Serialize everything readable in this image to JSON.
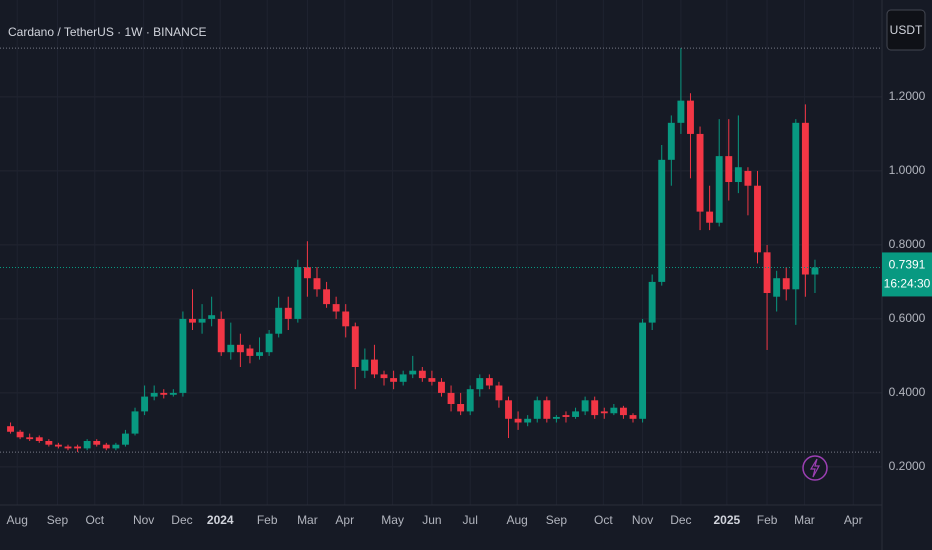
{
  "chart_data": {
    "type": "candlestick",
    "title": "Cardano / TetherUS · 1W · BINANCE",
    "currency_button": "USDT",
    "up_color": "#089981",
    "down_color": "#f23645",
    "grid": true,
    "open": [
      0.31,
      0.295,
      0.28,
      0.28,
      0.27,
      0.26,
      0.255,
      0.255,
      0.25,
      0.27,
      0.26,
      0.25,
      0.26,
      0.29,
      0.35,
      0.39,
      0.4,
      0.395,
      0.4,
      0.6,
      0.59,
      0.6,
      0.6,
      0.51,
      0.53,
      0.52,
      0.5,
      0.51,
      0.56,
      0.63,
      0.6,
      0.74,
      0.71,
      0.68,
      0.64,
      0.62,
      0.58,
      0.46,
      0.49,
      0.45,
      0.44,
      0.43,
      0.45,
      0.46,
      0.44,
      0.43,
      0.4,
      0.37,
      0.35,
      0.41,
      0.44,
      0.42,
      0.38,
      0.33,
      0.32,
      0.33,
      0.38,
      0.33,
      0.34,
      0.335,
      0.35,
      0.38,
      0.35,
      0.345,
      0.36,
      0.34,
      0.33,
      0.59,
      0.7,
      1.03,
      1.13,
      1.19,
      1.1,
      0.89,
      0.86,
      1.04,
      0.97,
      1.0,
      0.96,
      0.78,
      0.66,
      0.71,
      0.68,
      1.13,
      0.72
    ],
    "high": [
      0.32,
      0.3,
      0.29,
      0.285,
      0.275,
      0.265,
      0.26,
      0.26,
      0.275,
      0.275,
      0.265,
      0.265,
      0.3,
      0.36,
      0.42,
      0.42,
      0.41,
      0.41,
      0.62,
      0.68,
      0.64,
      0.66,
      0.62,
      0.59,
      0.56,
      0.53,
      0.55,
      0.57,
      0.66,
      0.66,
      0.76,
      0.81,
      0.74,
      0.7,
      0.66,
      0.64,
      0.59,
      0.52,
      0.53,
      0.46,
      0.46,
      0.46,
      0.5,
      0.47,
      0.46,
      0.44,
      0.42,
      0.4,
      0.42,
      0.45,
      0.45,
      0.43,
      0.39,
      0.35,
      0.34,
      0.39,
      0.39,
      0.34,
      0.35,
      0.36,
      0.39,
      0.39,
      0.36,
      0.37,
      0.365,
      0.345,
      0.6,
      0.72,
      1.07,
      1.15,
      1.332,
      1.21,
      1.12,
      0.96,
      1.14,
      1.14,
      1.15,
      1.01,
      1.0,
      0.8,
      0.73,
      0.74,
      1.14,
      1.18,
      0.76
    ],
    "low": [
      0.29,
      0.275,
      0.27,
      0.265,
      0.255,
      0.25,
      0.245,
      0.24,
      0.245,
      0.255,
      0.245,
      0.245,
      0.255,
      0.285,
      0.34,
      0.38,
      0.385,
      0.39,
      0.39,
      0.57,
      0.56,
      0.58,
      0.5,
      0.49,
      0.47,
      0.48,
      0.49,
      0.5,
      0.55,
      0.57,
      0.59,
      0.66,
      0.66,
      0.63,
      0.6,
      0.55,
      0.41,
      0.44,
      0.44,
      0.42,
      0.41,
      0.42,
      0.44,
      0.43,
      0.42,
      0.39,
      0.35,
      0.34,
      0.34,
      0.39,
      0.41,
      0.36,
      0.278,
      0.3,
      0.31,
      0.32,
      0.32,
      0.32,
      0.32,
      0.33,
      0.34,
      0.33,
      0.33,
      0.34,
      0.33,
      0.32,
      0.32,
      0.57,
      0.69,
      0.96,
      1.1,
      0.98,
      0.84,
      0.84,
      0.85,
      0.92,
      0.94,
      0.88,
      0.75,
      0.516,
      0.62,
      0.65,
      0.584,
      0.66,
      0.67
    ],
    "close": [
      0.295,
      0.28,
      0.275,
      0.27,
      0.26,
      0.255,
      0.25,
      0.25,
      0.27,
      0.26,
      0.25,
      0.26,
      0.29,
      0.35,
      0.39,
      0.4,
      0.395,
      0.4,
      0.6,
      0.59,
      0.6,
      0.61,
      0.51,
      0.53,
      0.51,
      0.5,
      0.51,
      0.56,
      0.63,
      0.6,
      0.74,
      0.71,
      0.68,
      0.64,
      0.62,
      0.58,
      0.47,
      0.49,
      0.45,
      0.44,
      0.43,
      0.45,
      0.46,
      0.44,
      0.43,
      0.4,
      0.37,
      0.35,
      0.41,
      0.44,
      0.42,
      0.38,
      0.33,
      0.32,
      0.33,
      0.38,
      0.33,
      0.335,
      0.335,
      0.35,
      0.38,
      0.34,
      0.345,
      0.36,
      0.34,
      0.33,
      0.59,
      0.7,
      1.03,
      1.13,
      1.19,
      1.1,
      0.89,
      0.86,
      1.04,
      0.97,
      1.01,
      0.96,
      0.78,
      0.67,
      0.71,
      0.68,
      1.13,
      0.72,
      0.7391
    ],
    "last_price": {
      "value": 0.7391,
      "label": "0.7391"
    },
    "countdown": "16:24:30",
    "xlim": [
      -1.1,
      91
    ],
    "xticks": [
      {
        "value": 0.7,
        "label": "Aug"
      },
      {
        "value": 4.9,
        "label": "Sep"
      },
      {
        "value": 8.8,
        "label": "Oct"
      },
      {
        "value": 13.9,
        "label": "Nov"
      },
      {
        "value": 17.9,
        "label": "Dec"
      },
      {
        "value": 21.9,
        "label": "2024"
      },
      {
        "value": 26.8,
        "label": "Feb"
      },
      {
        "value": 31.0,
        "label": "Mar"
      },
      {
        "value": 34.9,
        "label": "Apr"
      },
      {
        "value": 39.9,
        "label": "May"
      },
      {
        "value": 44.0,
        "label": "Jun"
      },
      {
        "value": 48.0,
        "label": "Jul"
      },
      {
        "value": 52.9,
        "label": "Aug"
      },
      {
        "value": 57.0,
        "label": "Sep"
      },
      {
        "value": 61.9,
        "label": "Oct"
      },
      {
        "value": 66.0,
        "label": "Nov"
      },
      {
        "value": 70.0,
        "label": "Dec"
      },
      {
        "value": 74.8,
        "label": "2025"
      },
      {
        "value": 79.0,
        "label": "Feb"
      },
      {
        "value": 82.9,
        "label": "Mar"
      },
      {
        "value": 88.0,
        "label": "Apr"
      }
    ],
    "ylim": [
      0.097,
      1.462
    ],
    "yticks": [
      {
        "value": 0.2,
        "label": "0.2000"
      },
      {
        "value": 0.4,
        "label": "0.4000"
      },
      {
        "value": 0.6,
        "label": "0.6000"
      },
      {
        "value": 0.8,
        "label": "0.8000"
      },
      {
        "value": 1.0,
        "label": "1.0000"
      },
      {
        "value": 1.2,
        "label": "1.2000"
      }
    ]
  }
}
